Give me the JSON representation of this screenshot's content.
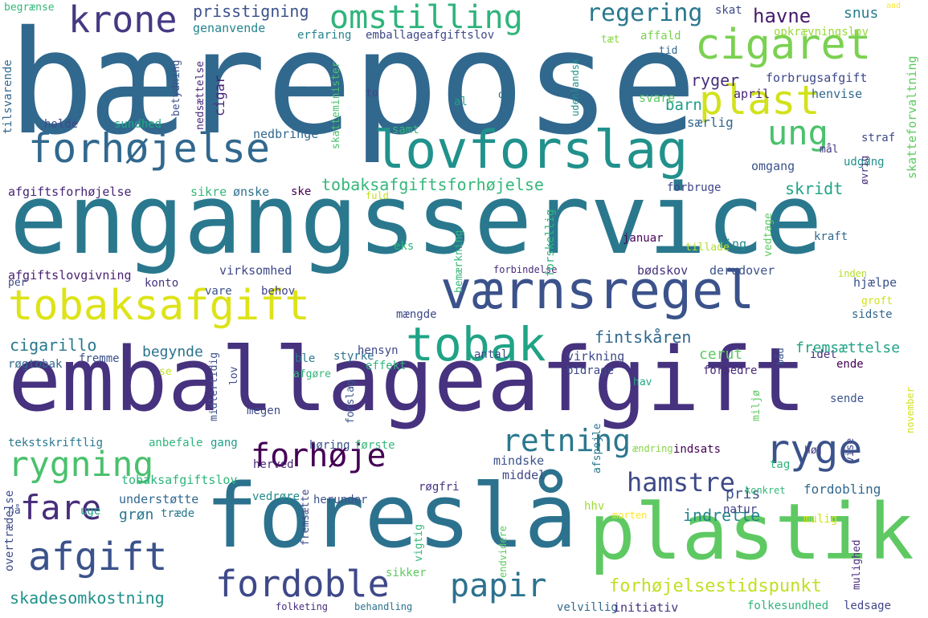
{
  "words": [
    {
      "text": "bærepose",
      "color": "#31688e",
      "rot": 0
    },
    {
      "text": "engangsservice",
      "color": "#2a788e",
      "rot": 0
    },
    {
      "text": "emballageafgift",
      "color": "#46327e",
      "rot": 0
    },
    {
      "text": "foreslå",
      "color": "#2c728e",
      "rot": 0
    },
    {
      "text": "plastik",
      "color": "#5ec962",
      "rot": 0
    },
    {
      "text": "lovforslag",
      "color": "#21918c",
      "rot": 0
    },
    {
      "text": "værnsregel",
      "color": "#3b528b",
      "rot": 0
    },
    {
      "text": "tobaksafgift",
      "color": "#dde318",
      "rot": 0
    },
    {
      "text": "tobak",
      "color": "#20a386",
      "rot": 0
    },
    {
      "text": "cigaret",
      "color": "#7ad151",
      "rot": 0
    },
    {
      "text": "plast",
      "color": "#d2e21b",
      "rot": 0
    },
    {
      "text": "forhøjelse",
      "color": "#31688e",
      "rot": 0
    },
    {
      "text": "omstilling",
      "color": "#2fb47c",
      "rot": 0
    },
    {
      "text": "krone",
      "color": "#443983",
      "rot": 0
    },
    {
      "text": "ung",
      "color": "#4ac16d",
      "rot": 0
    },
    {
      "text": "rygning",
      "color": "#4ac16d",
      "rot": 0
    },
    {
      "text": "forhøje",
      "color": "#440154",
      "rot": 0
    },
    {
      "text": "ryge",
      "color": "#3b528b",
      "rot": 0
    },
    {
      "text": "retning",
      "color": "#2a788e",
      "rot": 0
    },
    {
      "text": "hamstre",
      "color": "#3e4989",
      "rot": 0
    },
    {
      "text": "fare",
      "color": "#472d7b",
      "rot": 0
    },
    {
      "text": "afgift",
      "color": "#3b528b",
      "rot": 0
    },
    {
      "text": "fordoble",
      "color": "#3e4989",
      "rot": 0
    },
    {
      "text": "papir",
      "color": "#2c728e",
      "rot": 0
    },
    {
      "text": "forhøjelsestidspunkt",
      "color": "#c2df23",
      "rot": 0
    },
    {
      "text": "skadesomkostning",
      "color": "#21918c",
      "rot": 0
    },
    {
      "text": "regering",
      "color": "#2a788e",
      "rot": 0
    },
    {
      "text": "prisstigning",
      "color": "#3b528b",
      "rot": 0
    },
    {
      "text": "havne",
      "color": "#481a6c",
      "rot": 0
    },
    {
      "text": "snus",
      "color": "#287c8e",
      "rot": 0
    },
    {
      "text": "skat",
      "color": "#3e4989",
      "rot": 0
    },
    {
      "text": "begrænse",
      "color": "#35b779",
      "rot": 0
    },
    {
      "text": "and",
      "color": "#fde725",
      "rot": 0
    },
    {
      "text": "genanvende",
      "color": "#25848e",
      "rot": 0
    },
    {
      "text": "erfaring",
      "color": "#26828e",
      "rot": 0
    },
    {
      "text": "emballageafgiftslov",
      "color": "#3e4989",
      "rot": 0
    },
    {
      "text": "tæt",
      "color": "#86d549",
      "rot": 0
    },
    {
      "text": "affald",
      "color": "#7ad151",
      "rot": 0
    },
    {
      "text": "opkrævningslov",
      "color": "#9bd93c",
      "rot": 0
    },
    {
      "text": "tid",
      "color": "#31688e",
      "rot": 0
    },
    {
      "text": "ryger",
      "color": "#472f7d",
      "rot": 0
    },
    {
      "text": "forbrugsafgift",
      "color": "#3e4989",
      "rot": 0
    },
    {
      "text": "barn",
      "color": "#1f9e89",
      "rot": 0
    },
    {
      "text": "april",
      "color": "#482878",
      "rot": 0
    },
    {
      "text": "henvise",
      "color": "#31688e",
      "rot": 0
    },
    {
      "text": "to",
      "color": "#414487",
      "rot": 0
    },
    {
      "text": "al",
      "color": "#1fa188",
      "rot": 0
    },
    {
      "text": "dø",
      "color": "#2e6d8e",
      "rot": 0
    },
    {
      "text": "svare",
      "color": "#5ec962",
      "rot": 0
    },
    {
      "text": "særlig",
      "color": "#31688e",
      "rot": 0
    },
    {
      "text": "holde",
      "color": "#3e4989",
      "rot": 0
    },
    {
      "text": "sundhed",
      "color": "#22a884",
      "rot": 0
    },
    {
      "text": "samt",
      "color": "#2fb47c",
      "rot": 0
    },
    {
      "text": "nedbringe",
      "color": "#31688e",
      "rot": 0
    },
    {
      "text": "mål",
      "color": "#443983",
      "rot": 0
    },
    {
      "text": "straf",
      "color": "#3e4989",
      "rot": 0
    },
    {
      "text": "udgang",
      "color": "#21918c",
      "rot": 0
    },
    {
      "text": "omgang",
      "color": "#3b528b",
      "rot": 0
    },
    {
      "text": "skridt",
      "color": "#20a386",
      "rot": 0
    },
    {
      "text": "tobaksafgiftsforhøjelse",
      "color": "#35b779",
      "rot": 0
    },
    {
      "text": "afgiftsforhøjelse",
      "color": "#482475",
      "rot": 0
    },
    {
      "text": "sikre",
      "color": "#35b779",
      "rot": 0
    },
    {
      "text": "ønske",
      "color": "#2c728e",
      "rot": 0
    },
    {
      "text": "ske",
      "color": "#440154",
      "rot": 0
    },
    {
      "text": "forbruge",
      "color": "#414487",
      "rot": 0
    },
    {
      "text": "fuld",
      "color": "#c2df23",
      "rot": 0
    },
    {
      "text": "januar",
      "color": "#450457",
      "rot": 0
    },
    {
      "text": "ting",
      "color": "#238a8d",
      "rot": 0
    },
    {
      "text": "kraft",
      "color": "#31688e",
      "rot": 0
    },
    {
      "text": "tillade",
      "color": "#b5de2b",
      "rot": 0
    },
    {
      "text": "eks",
      "color": "#2fb47c",
      "rot": 0
    },
    {
      "text": "virksomhed",
      "color": "#3e4989",
      "rot": 0
    },
    {
      "text": "afgiftslovgivning",
      "color": "#481f70",
      "rot": 0
    },
    {
      "text": "per",
      "color": "#3e4989",
      "rot": 0
    },
    {
      "text": "forbindelse",
      "color": "#472d7b",
      "rot": 0
    },
    {
      "text": "bødskov",
      "color": "#46327e",
      "rot": 0
    },
    {
      "text": "derudover",
      "color": "#3b528b",
      "rot": 0
    },
    {
      "text": "inden",
      "color": "#b5de2b",
      "rot": 0
    },
    {
      "text": "hjælpe",
      "color": "#3b528b",
      "rot": 0
    },
    {
      "text": "konto",
      "color": "#46327e",
      "rot": 0
    },
    {
      "text": "vare",
      "color": "#3b528b",
      "rot": 0
    },
    {
      "text": "behov",
      "color": "#414487",
      "rot": 0
    },
    {
      "text": "mængde",
      "color": "#3e4989",
      "rot": 0
    },
    {
      "text": "groft",
      "color": "#d2e21b",
      "rot": 0
    },
    {
      "text": "sidste",
      "color": "#31688e",
      "rot": 0
    },
    {
      "text": "cigarillo",
      "color": "#2a788e",
      "rot": 0
    },
    {
      "text": "fintskåren",
      "color": "#31688e",
      "rot": 0
    },
    {
      "text": "cerut",
      "color": "#5ec962",
      "rot": 0
    },
    {
      "text": "antal",
      "color": "#3e4989",
      "rot": 0
    },
    {
      "text": "idet",
      "color": "#472d7b",
      "rot": 0
    },
    {
      "text": "begynde",
      "color": "#2c728e",
      "rot": 0
    },
    {
      "text": "fremsættelse",
      "color": "#20a386",
      "rot": 0
    },
    {
      "text": "fremme",
      "color": "#3b528b",
      "rot": 0
    },
    {
      "text": "røgtobak",
      "color": "#31688e",
      "rot": 0
    },
    {
      "text": "ble",
      "color": "#2a788e",
      "rot": 0
    },
    {
      "text": "styrke",
      "color": "#2c728e",
      "rot": 0
    },
    {
      "text": "hensyn",
      "color": "#3e4989",
      "rot": 0
    },
    {
      "text": "virkning",
      "color": "#3e4989",
      "rot": 0
    },
    {
      "text": "ende",
      "color": "#440154",
      "rot": 0
    },
    {
      "text": "se",
      "color": "#c2df23",
      "rot": 0
    },
    {
      "text": "afgøre",
      "color": "#35b779",
      "rot": 0
    },
    {
      "text": "effekt",
      "color": "#2fb47c",
      "rot": 0
    },
    {
      "text": "bidrage",
      "color": "#3e4989",
      "rot": 0
    },
    {
      "text": "forbedre",
      "color": "#482878",
      "rot": 0
    },
    {
      "text": "hav",
      "color": "#22a884",
      "rot": 0
    },
    {
      "text": "sende",
      "color": "#3b528b",
      "rot": 0
    },
    {
      "text": "megen",
      "color": "#3e4989",
      "rot": 0
    },
    {
      "text": "tekstskriftlig",
      "color": "#2a788e",
      "rot": 0
    },
    {
      "text": "anbefale",
      "color": "#2fb47c",
      "rot": 0
    },
    {
      "text": "gang",
      "color": "#1f9e89",
      "rot": 0
    },
    {
      "text": "høring",
      "color": "#3b528b",
      "rot": 0
    },
    {
      "text": "første",
      "color": "#35b779",
      "rot": 0
    },
    {
      "text": "tag",
      "color": "#2fb47c",
      "rot": 0
    },
    {
      "text": "høj",
      "color": "#443983",
      "rot": 0
    },
    {
      "text": "ændring",
      "color": "#86d549",
      "rot": 0
    },
    {
      "text": "indsats",
      "color": "#440154",
      "rot": 0
    },
    {
      "text": "herved",
      "color": "#482878",
      "rot": 0
    },
    {
      "text": "mindske",
      "color": "#3b528b",
      "rot": 0
    },
    {
      "text": "middel",
      "color": "#3e4989",
      "rot": 0
    },
    {
      "text": "pris",
      "color": "#3b528b",
      "rot": 0
    },
    {
      "text": "konkret",
      "color": "#35b779",
      "rot": 0
    },
    {
      "text": "tobaksafgiftslov",
      "color": "#2fb47c",
      "rot": 0
    },
    {
      "text": "røgfri",
      "color": "#46327e",
      "rot": 0
    },
    {
      "text": "fordobling",
      "color": "#31688e",
      "rot": 0
    },
    {
      "text": "hhv",
      "color": "#a0da39",
      "rot": 0
    },
    {
      "text": "understøtte",
      "color": "#31688e",
      "rot": 0
    },
    {
      "text": "vedrøre",
      "color": "#238a8d",
      "rot": 0
    },
    {
      "text": "herunder",
      "color": "#3b528b",
      "rot": 0
    },
    {
      "text": "grøn",
      "color": "#2a788e",
      "rot": 0
    },
    {
      "text": "indrette",
      "color": "#25848e",
      "rot": 0
    },
    {
      "text": "morten",
      "color": "#fde725",
      "rot": 0
    },
    {
      "text": "natur",
      "color": "#414487",
      "rot": 0
    },
    {
      "text": "mulig",
      "color": "#d2e21b",
      "rot": 0
    },
    {
      "text": "nå",
      "color": "#3b528b",
      "rot": 0
    },
    {
      "text": "uge",
      "color": "#1f9e89",
      "rot": 0
    },
    {
      "text": "træde",
      "color": "#2a788e",
      "rot": 0
    },
    {
      "text": "sikker",
      "color": "#5ec962",
      "rot": 0
    },
    {
      "text": "velvillig",
      "color": "#31688e",
      "rot": 0
    },
    {
      "text": "initiativ",
      "color": "#46327e",
      "rot": 0
    },
    {
      "text": "ledsage",
      "color": "#414487",
      "rot": 0
    },
    {
      "text": "folketing",
      "color": "#472d7b",
      "rot": 0
    },
    {
      "text": "behandling",
      "color": "#2c728e",
      "rot": 0
    },
    {
      "text": "folkesundhed",
      "color": "#2fb47c",
      "rot": 0
    },
    {
      "text": "tilsvarende",
      "color": "#31688e",
      "rot": -90
    },
    {
      "text": "nedsættelse",
      "color": "#482878",
      "rot": -90
    },
    {
      "text": "cigar",
      "color": "#482475",
      "rot": -90
    },
    {
      "text": "betydning",
      "color": "#3b528b",
      "rot": -90
    },
    {
      "text": "udenlandsk",
      "color": "#21918c",
      "rot": -90
    },
    {
      "text": "skatteminister",
      "color": "#4ac16d",
      "rot": -90
    },
    {
      "text": "skatteforvaltning",
      "color": "#5ec962",
      "rot": -90
    },
    {
      "text": "øvrig",
      "color": "#472d7b",
      "rot": -90
    },
    {
      "text": "vedtage",
      "color": "#5ec962",
      "rot": -90
    },
    {
      "text": "bemærkning",
      "color": "#35b779",
      "rot": -90
    },
    {
      "text": "forskellig",
      "color": "#2fb47c",
      "rot": -90
    },
    {
      "text": "midlertidig",
      "color": "#3b528b",
      "rot": -90
    },
    {
      "text": "lov",
      "color": "#3e4989",
      "rot": -90
    },
    {
      "text": "forslag",
      "color": "#3b528b",
      "rot": -90
    },
    {
      "text": "miljø",
      "color": "#5ec962",
      "rot": -90
    },
    {
      "text": "november",
      "color": "#d2e21b",
      "rot": -90
    },
    {
      "text": "vise",
      "color": "#3e4989",
      "rot": -90
    },
    {
      "text": "båd",
      "color": "#3b528b",
      "rot": -90
    },
    {
      "text": "afspejle",
      "color": "#2a788e",
      "rot": -90
    },
    {
      "text": "fremsætte",
      "color": "#3e4989",
      "rot": -90
    },
    {
      "text": "vigtig",
      "color": "#35b779",
      "rot": -90
    },
    {
      "text": "endvidere",
      "color": "#5ec962",
      "rot": -90
    },
    {
      "text": "mulighed",
      "color": "#472d7b",
      "rot": -90
    },
    {
      "text": "overtrædelse",
      "color": "#3e4989",
      "rot": -90
    }
  ]
}
